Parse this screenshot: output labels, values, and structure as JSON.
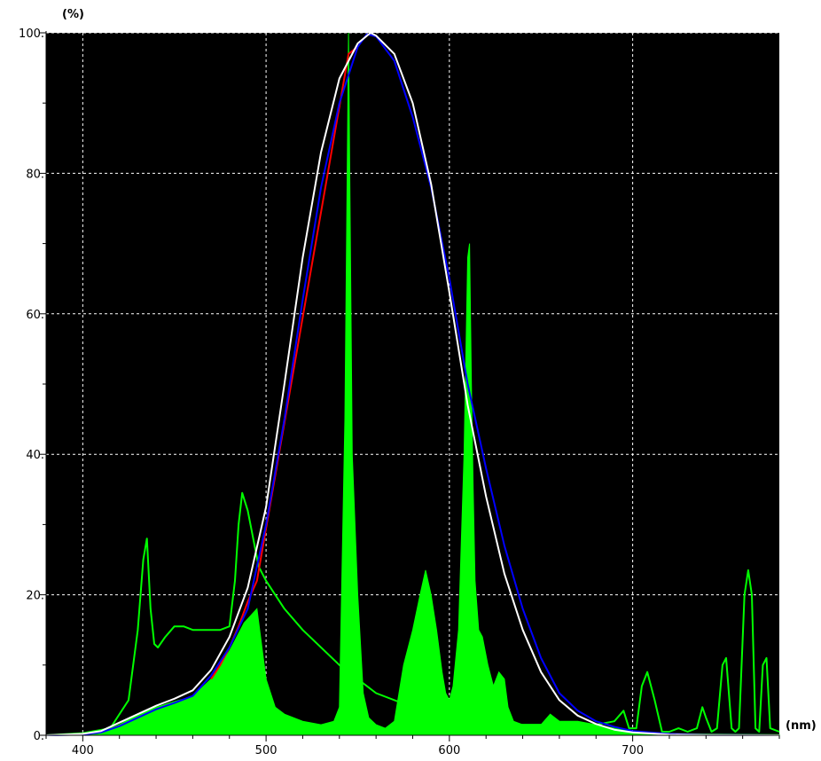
{
  "chart_data": {
    "type": "area",
    "title": "",
    "ylabel_unit": "(%)",
    "xlabel_unit": "(nm)",
    "xlim": [
      380,
      780
    ],
    "ylim": [
      0,
      100
    ],
    "grid": true,
    "background": "#000000",
    "xticks": [
      400,
      500,
      600,
      700
    ],
    "yticks": [
      0,
      20,
      40,
      60,
      80,
      100
    ],
    "xtick_labels": [
      "400",
      "500",
      "600",
      "700"
    ],
    "ytick_labels": [
      "0.",
      "20.",
      "40.",
      "60.",
      "80.",
      "100."
    ],
    "series": [
      {
        "color": "#00ff00",
        "style": "filled",
        "x": [
          380,
          400,
          410,
          420,
          430,
          440,
          450,
          460,
          470,
          480,
          488,
          495,
          500,
          505,
          510,
          520,
          530,
          537,
          540,
          543,
          545,
          547,
          550,
          553,
          556,
          560,
          565,
          570,
          575,
          580,
          584,
          587,
          590,
          593,
          596,
          598,
          600,
          602,
          605,
          608,
          610,
          611,
          612,
          613,
          614,
          616,
          618,
          621,
          624,
          627,
          630,
          632,
          635,
          640,
          650,
          655,
          660,
          670,
          680,
          690,
          700,
          710,
          720,
          780
        ],
        "y": [
          0,
          0.2,
          0.5,
          1.5,
          3,
          4,
          4.8,
          5.5,
          8,
          12,
          16,
          18,
          8,
          4,
          3,
          2,
          1.5,
          2,
          4,
          45,
          100,
          40,
          20,
          6,
          2.5,
          1.5,
          1,
          2,
          10,
          15,
          20,
          23.5,
          20,
          15,
          9,
          6,
          5,
          7,
          15,
          40,
          68,
          70,
          50,
          35,
          22,
          15,
          14,
          10,
          7,
          9,
          8,
          4,
          2,
          1.5,
          1.5,
          3,
          2,
          2,
          1.5,
          1,
          0.5,
          0.3,
          0.2,
          0.1
        ]
      },
      {
        "color": "#00ff00",
        "style": "line",
        "x": [
          380,
          400,
          415,
          425,
          430,
          433,
          435,
          437,
          439,
          441,
          445,
          450,
          455,
          460,
          470,
          475,
          480,
          483,
          485,
          487,
          490,
          493,
          496,
          500,
          505,
          510,
          520,
          540,
          560,
          580,
          600,
          620,
          640,
          660,
          680,
          690,
          695,
          698,
          702,
          705,
          708,
          712,
          716,
          720,
          725,
          730,
          735,
          738,
          740,
          743,
          746,
          749,
          751,
          754,
          756,
          758,
          761,
          763,
          765,
          767,
          769,
          771,
          773,
          775,
          780
        ],
        "y": [
          0,
          0.3,
          1,
          5,
          15,
          25,
          28,
          18,
          13,
          12.5,
          14,
          15.5,
          15.5,
          15,
          15,
          15,
          15.5,
          22,
          30,
          34.5,
          32,
          28,
          24,
          22,
          20,
          18,
          15,
          10,
          6,
          4,
          2.5,
          1.8,
          1.5,
          1.5,
          1.5,
          2,
          3.5,
          1,
          1,
          7,
          9,
          5,
          0.5,
          0.5,
          1,
          0.5,
          1,
          4,
          2.5,
          0.5,
          1,
          10,
          11,
          1,
          0.5,
          1,
          20,
          23.5,
          20,
          1,
          0.5,
          10,
          11,
          1,
          0.5
        ]
      },
      {
        "color": "#ff0000",
        "style": "line",
        "x": [
          470,
          475,
          480,
          485,
          490,
          495,
          545,
          550
        ],
        "y": [
          8,
          10,
          12.5,
          15.5,
          19,
          22,
          97,
          98
        ]
      },
      {
        "color": "#0000ff",
        "style": "line",
        "x": [
          380,
          400,
          410,
          420,
          430,
          440,
          450,
          460,
          470,
          480,
          490,
          500,
          510,
          520,
          530,
          540,
          550,
          555,
          560,
          570,
          580,
          590,
          600,
          610,
          620,
          630,
          640,
          650,
          660,
          670,
          680,
          690,
          700,
          720,
          740,
          780
        ],
        "y": [
          0,
          0.1,
          0.4,
          1.3,
          2.5,
          3.7,
          4.6,
          5.6,
          8.5,
          12.5,
          18,
          30,
          45,
          62,
          78,
          90,
          98,
          99.8,
          99.5,
          96,
          88,
          78,
          65,
          50,
          38,
          27,
          18,
          11,
          6,
          3.5,
          2,
          1.2,
          0.6,
          0.2,
          0.05,
          0
        ]
      },
      {
        "color": "#ffffff",
        "style": "line",
        "x": [
          380,
          400,
          410,
          420,
          430,
          440,
          450,
          460,
          470,
          480,
          490,
          500,
          510,
          520,
          530,
          540,
          550,
          557,
          560,
          570,
          580,
          590,
          600,
          610,
          620,
          630,
          640,
          650,
          660,
          670,
          680,
          690,
          700,
          720,
          740,
          780
        ],
        "y": [
          0,
          0.2,
          0.6,
          1.8,
          3,
          4.2,
          5.2,
          6.4,
          9.3,
          14,
          21,
          32.5,
          50,
          68,
          83,
          93.5,
          98.5,
          100,
          99.6,
          97,
          90,
          78.5,
          63,
          47,
          34,
          23,
          15,
          9,
          5,
          2.8,
          1.6,
          0.8,
          0.4,
          0.1,
          0.02,
          0
        ]
      }
    ]
  }
}
